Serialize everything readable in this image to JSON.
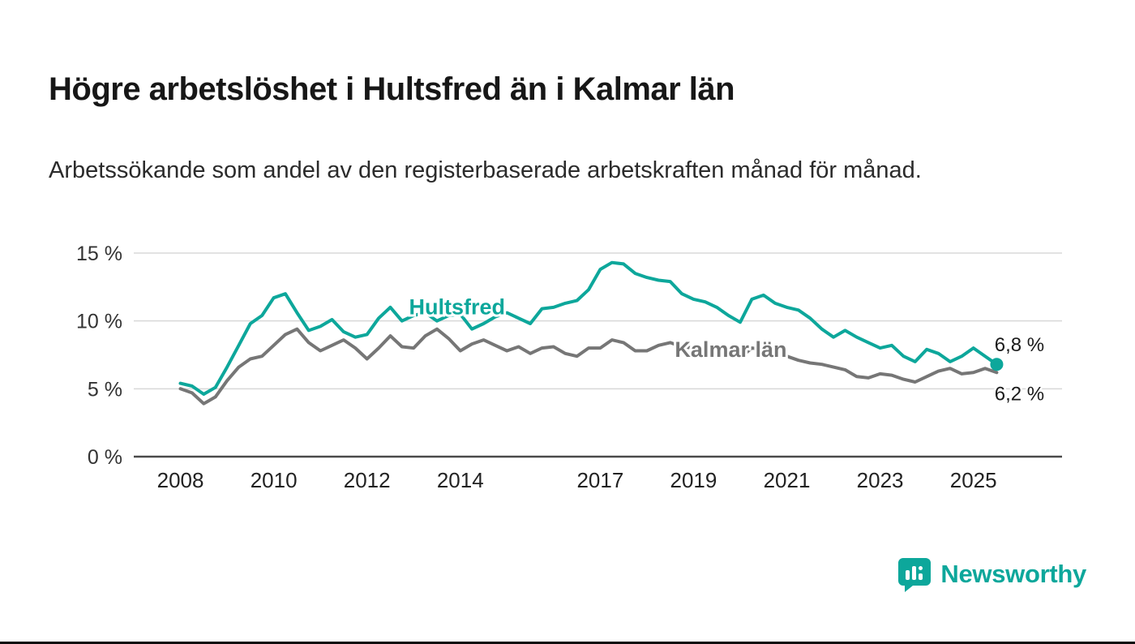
{
  "page": {
    "title": "Högre arbetslöshet i Hultsfred än i Kalmar län",
    "subtitle": "Arbetssökande som andel av den registerbaserade arbetskraften månad för månad."
  },
  "footer": {
    "brand": "Newsworthy",
    "brand_color": "#0da79b",
    "logo_icon": "bar-chart-speech-bubble-icon"
  },
  "chart_data": {
    "type": "line",
    "title": "Högre arbetslöshet i Hultsfred än i Kalmar län",
    "subtitle": "Arbetssökande som andel av den registerbaserade arbetskraften månad för månad.",
    "unit": "%",
    "grid": "horizontal",
    "x_range": [
      2007,
      2026.9
    ],
    "y_range": [
      0,
      15
    ],
    "x_ticks": [
      2008,
      2010,
      2012,
      2014,
      2017,
      2019,
      2021,
      2023,
      2025
    ],
    "y_ticks": [
      {
        "value": 0,
        "label": "0 %"
      },
      {
        "value": 5,
        "label": "5 %"
      },
      {
        "value": 10,
        "label": "10 %"
      },
      {
        "value": 15,
        "label": "15 %"
      }
    ],
    "series": [
      {
        "name": "Hultsfred",
        "color": "#0da79b",
        "start_year": 2008.0,
        "step_years": 0.25,
        "end_dot": true,
        "end_label": "6,8 %",
        "end_label_position": "above",
        "label_pos": {
          "x": 2012.9,
          "y": 10.5
        },
        "values": [
          5.4,
          5.2,
          4.6,
          5.1,
          6.6,
          8.2,
          9.8,
          10.4,
          11.7,
          12.0,
          10.6,
          9.3,
          9.6,
          10.1,
          9.2,
          8.8,
          9.0,
          10.2,
          11.0,
          10.0,
          10.4,
          10.6,
          10.0,
          10.4,
          10.5,
          9.4,
          9.8,
          10.3,
          10.6,
          10.2,
          9.8,
          10.9,
          11.0,
          11.3,
          11.5,
          12.3,
          13.8,
          14.3,
          14.2,
          13.5,
          13.2,
          13.0,
          12.9,
          12.0,
          11.6,
          11.4,
          11.0,
          10.4,
          9.9,
          11.6,
          11.9,
          11.3,
          11.0,
          10.8,
          10.2,
          9.4,
          8.8,
          9.3,
          8.8,
          8.4,
          8.0,
          8.2,
          7.4,
          7.0,
          7.9,
          7.6,
          7.0,
          7.4,
          8.0,
          7.4,
          6.8
        ]
      },
      {
        "name": "Kalmar län",
        "color": "#767676",
        "start_year": 2008.0,
        "step_years": 0.25,
        "end_dot": false,
        "end_label": "6,2 %",
        "end_label_position": "below",
        "label_pos": {
          "x": 2018.6,
          "y": 7.35
        },
        "values": [
          5.0,
          4.7,
          3.9,
          4.4,
          5.6,
          6.6,
          7.2,
          7.4,
          8.2,
          9.0,
          9.4,
          8.4,
          7.8,
          8.2,
          8.6,
          8.0,
          7.2,
          8.0,
          8.9,
          8.1,
          8.0,
          8.9,
          9.4,
          8.7,
          7.8,
          8.3,
          8.6,
          8.2,
          7.8,
          8.1,
          7.6,
          8.0,
          8.1,
          7.6,
          7.4,
          8.0,
          8.0,
          8.6,
          8.4,
          7.8,
          7.8,
          8.2,
          8.4,
          8.1,
          8.0,
          7.7,
          7.5,
          7.4,
          7.3,
          8.0,
          7.9,
          7.6,
          7.4,
          7.1,
          6.9,
          6.8,
          6.6,
          6.4,
          5.9,
          5.8,
          6.1,
          6.0,
          5.7,
          5.5,
          5.9,
          6.3,
          6.5,
          6.1,
          6.2,
          6.5,
          6.2
        ]
      }
    ]
  }
}
